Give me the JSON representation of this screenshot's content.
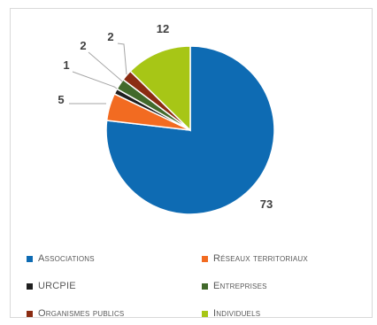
{
  "chart_data": {
    "type": "pie",
    "categories": [
      "Associations",
      "Réseaux territoriaux",
      "URCPIE",
      "Entreprises",
      "Organismes publics",
      "Individuels"
    ],
    "values": [
      73,
      5,
      1,
      2,
      2,
      12
    ],
    "data_labels": [
      "73",
      "5",
      "1",
      "2",
      "2",
      "12"
    ],
    "colors": [
      "#0e6bb3",
      "#f26b21",
      "#1f1f1f",
      "#41692b",
      "#8b2c12",
      "#a7c616"
    ],
    "start_angle_deg": 0,
    "direction": "clockwise",
    "legend_position": "bottom",
    "title": ""
  }
}
